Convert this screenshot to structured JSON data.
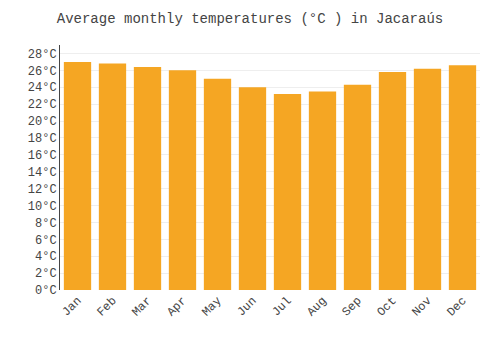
{
  "chart_data": {
    "type": "bar",
    "title": "Average monthly temperatures (°C ) in Jacaraús",
    "categories": [
      "Jan",
      "Feb",
      "Mar",
      "Apr",
      "May",
      "Jun",
      "Jul",
      "Aug",
      "Sep",
      "Oct",
      "Nov",
      "Dec"
    ],
    "values": [
      27.0,
      26.8,
      26.4,
      26.0,
      25.0,
      24.0,
      23.2,
      23.5,
      24.3,
      25.8,
      26.2,
      26.6
    ],
    "color": "#F5A623",
    "ylim": [
      0,
      29
    ],
    "yticks": [
      {
        "value": 0,
        "label": "0°C"
      },
      {
        "value": 2,
        "label": "2°C"
      },
      {
        "value": 4,
        "label": "4°C"
      },
      {
        "value": 6,
        "label": "6°C"
      },
      {
        "value": 8,
        "label": "8°C"
      },
      {
        "value": 10,
        "label": "10°C"
      },
      {
        "value": 12,
        "label": "12°C"
      },
      {
        "value": 14,
        "label": "14°C"
      },
      {
        "value": 16,
        "label": "16°C"
      },
      {
        "value": 18,
        "label": "18°C"
      },
      {
        "value": 20,
        "label": "20°C"
      },
      {
        "value": 22,
        "label": "22°C"
      },
      {
        "value": 24,
        "label": "24°C"
      },
      {
        "value": 26,
        "label": "26°C"
      },
      {
        "value": 28,
        "label": "28°C"
      }
    ],
    "grid": true
  }
}
